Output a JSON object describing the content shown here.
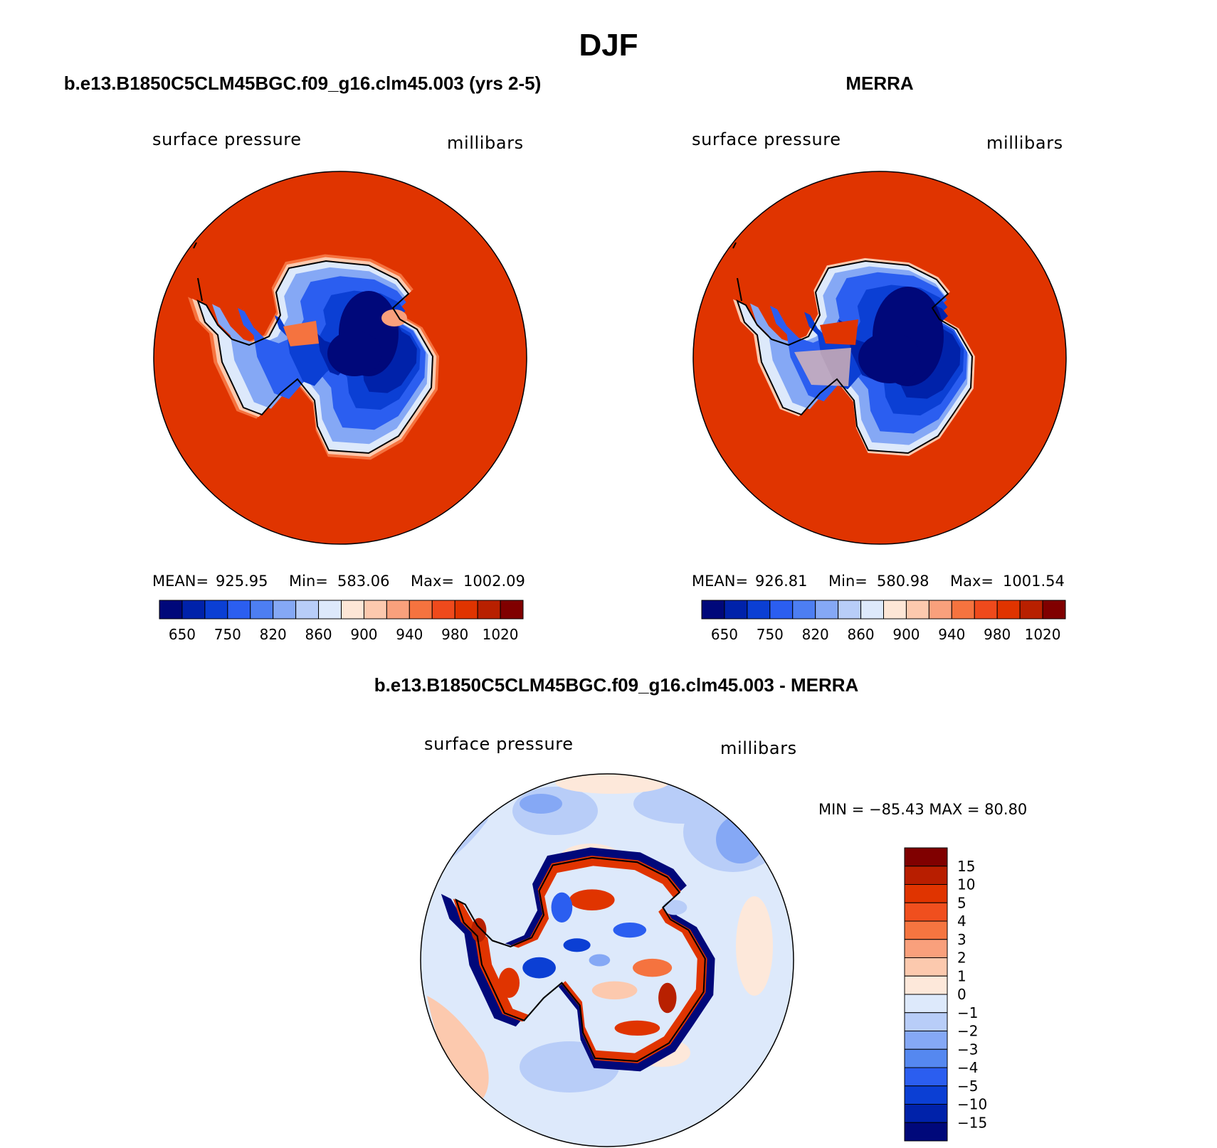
{
  "title": "DJF",
  "panels": [
    {
      "heading": "b.e13.B1850C5CLM45BGC.f09_g16.clm45.003 (yrs 2-5)",
      "variable": "surface pressure",
      "units": "millibars",
      "stats": {
        "mean_label": "MEAN=",
        "mean": "925.95",
        "min_label": "Min=",
        "min": "583.06",
        "max_label": "Max=",
        "max": "1002.09"
      }
    },
    {
      "heading": "MERRA",
      "variable": "surface pressure",
      "units": "millibars",
      "stats": {
        "mean_label": "MEAN=",
        "mean": "926.81",
        "min_label": "Min=",
        "min": "580.98",
        "max_label": "Max=",
        "max": "1001.54"
      }
    }
  ],
  "abs_colorbar": {
    "colors": [
      "#00087a",
      "#0022aa",
      "#0b3fd4",
      "#2b5ef0",
      "#4d7ef2",
      "#85a8f5",
      "#b8cdf8",
      "#dde9fb",
      "#fde6d6",
      "#fcc9ae",
      "#f9a07c",
      "#f5733f",
      "#ef4a1c",
      "#e03400",
      "#b82000",
      "#800000"
    ],
    "tick_labels": [
      "650",
      "750",
      "820",
      "860",
      "900",
      "940",
      "980",
      "1020"
    ]
  },
  "diff": {
    "heading": "b.e13.B1850C5CLM45BGC.f09_g16.clm45.003 - MERRA",
    "variable": "surface pressure",
    "units": "millibars",
    "minmax": "MIN = −85.43 MAX =   80.80",
    "colorbar": {
      "colors": [
        "#800000",
        "#b81e00",
        "#e03400",
        "#f04f1e",
        "#f57540",
        "#f9a07c",
        "#fcc9ae",
        "#fde8da",
        "#dde9fb",
        "#b8cdf8",
        "#85a8f5",
        "#5588f0",
        "#2b5ef0",
        "#0b3fd4",
        "#0022aa",
        "#00087a"
      ],
      "tick_labels": [
        "15",
        "10",
        "5",
        "4",
        "3",
        "2",
        "1",
        "0",
        "−1",
        "−2",
        "−3",
        "−4",
        "−5",
        "−10",
        "−15"
      ]
    }
  }
}
